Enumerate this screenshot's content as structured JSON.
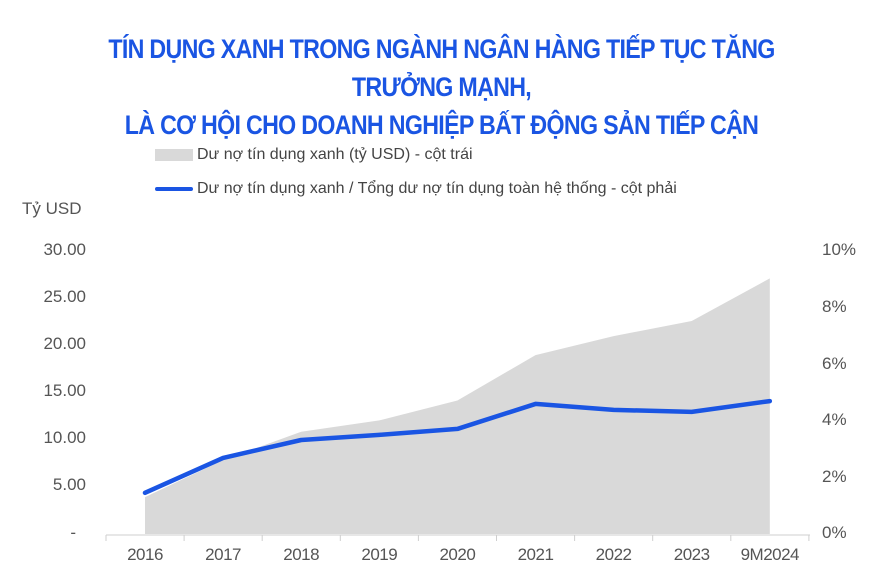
{
  "title": {
    "line1": "TÍN DỤNG XANH TRONG NGÀNH NGÂN HÀNG TIẾP TỤC TĂNG TRƯỞNG MẠNH,",
    "line2": "LÀ CƠ HỘI CHO DOANH NGHIỆP BẤT ĐỘNG SẢN TIẾP CẬN"
  },
  "legend": [
    {
      "label": "Dư nợ tín dụng xanh (tỷ USD) - cột trái",
      "type": "area",
      "color": "#d9d9d9"
    },
    {
      "label": "Dư nợ tín dụng xanh / Tổng dư nợ tín dụng toàn hệ thống - cột phải",
      "type": "line",
      "color": "#1a55e3"
    }
  ],
  "left_axis": {
    "title": "Tỷ USD",
    "ticks": [
      "30.00",
      "25.00",
      "20.00",
      "15.00",
      "10.00",
      "5.00",
      "-"
    ]
  },
  "right_axis": {
    "ticks": [
      "10%",
      "8%",
      "6%",
      "4%",
      "2%",
      "0%"
    ]
  },
  "chart_data": {
    "type": "area",
    "title": "TÍN DỤNG XANH TRONG NGÀNH NGÂN HÀNG TIẾP TỤC TĂNG TRƯỞNG MẠNH, LÀ CƠ HỘI CHO DOANH NGHIỆP BẤT ĐỘNG SẢN TIẾP CẬN",
    "categories": [
      "2016",
      "2017",
      "2018",
      "2019",
      "2020",
      "2021",
      "2022",
      "2023",
      "9M2024"
    ],
    "series": [
      {
        "name": "Dư nợ tín dụng xanh (tỷ USD) - cột trái",
        "type": "area",
        "axis": "left",
        "color": "#d9d9d9",
        "values": [
          3.9,
          7.8,
          10.8,
          12.0,
          14.1,
          18.9,
          20.9,
          22.5,
          27.0
        ]
      },
      {
        "name": "Dư nợ tín dụng xanh / Tổng dư nợ tín dụng toàn hệ thống - cột phải",
        "type": "line",
        "axis": "right",
        "color": "#1a55e3",
        "values": [
          1.45,
          2.68,
          3.31,
          3.49,
          3.7,
          4.58,
          4.37,
          4.3,
          4.68
        ]
      }
    ],
    "ylabel": "Tỷ USD",
    "ylim": [
      0,
      30
    ],
    "y2lim": [
      0,
      10
    ],
    "y2_format": "%",
    "grid": false,
    "legend_position": "top"
  }
}
